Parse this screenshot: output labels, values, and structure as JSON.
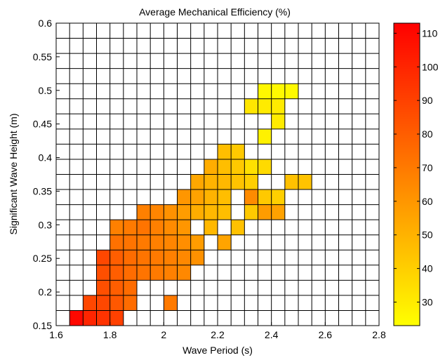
{
  "chart_data": {
    "type": "heatmap",
    "title": "Average Mechanical Efficiency (%)",
    "xlabel": "Wave Period (s)",
    "ylabel": "Significant Wave Height (m)",
    "xlim": [
      1.6,
      2.8
    ],
    "ylim": [
      0.15,
      0.6
    ],
    "x_ticks": [
      1.6,
      1.8,
      2.0,
      2.2,
      2.4,
      2.6,
      2.8
    ],
    "x_tick_labels": [
      "1.6",
      "1.8",
      "2",
      "2.2",
      "2.4",
      "2.6",
      "2.8"
    ],
    "y_ticks": [
      0.15,
      0.2,
      0.25,
      0.3,
      0.35,
      0.4,
      0.45,
      0.5,
      0.55,
      0.6
    ],
    "y_tick_labels": [
      "0.15",
      "0.2",
      "0.25",
      "0.3",
      "0.35",
      "0.4",
      "0.45",
      "0.5",
      "0.55",
      "0.6"
    ],
    "x_bin_width": 0.05,
    "y_bin_height": 0.0225,
    "colormap": "autumn (red to yellow)",
    "color_min": 23,
    "color_max": 113,
    "color_low_hex": "#ffff00",
    "color_high_hex": "#ff0000",
    "colorbar_ticks": [
      30,
      40,
      50,
      60,
      70,
      80,
      90,
      100,
      110
    ],
    "colorbar_tick_labels": [
      "30",
      "40",
      "50",
      "60",
      "70",
      "80",
      "90",
      "100",
      "110"
    ],
    "grid": true,
    "cells": [
      {
        "x": 1.65,
        "y": 0.15,
        "value": 110
      },
      {
        "x": 1.7,
        "y": 0.15,
        "value": 100
      },
      {
        "x": 1.75,
        "y": 0.15,
        "value": 95
      },
      {
        "x": 1.8,
        "y": 0.15,
        "value": 90
      },
      {
        "x": 1.7,
        "y": 0.1725,
        "value": 88
      },
      {
        "x": 1.75,
        "y": 0.1725,
        "value": 88
      },
      {
        "x": 1.8,
        "y": 0.1725,
        "value": 82
      },
      {
        "x": 1.85,
        "y": 0.1725,
        "value": 75
      },
      {
        "x": 2.0,
        "y": 0.1725,
        "value": 70
      },
      {
        "x": 1.75,
        "y": 0.195,
        "value": 85
      },
      {
        "x": 1.8,
        "y": 0.195,
        "value": 80
      },
      {
        "x": 1.85,
        "y": 0.195,
        "value": 75
      },
      {
        "x": 1.75,
        "y": 0.2175,
        "value": 85
      },
      {
        "x": 1.8,
        "y": 0.2175,
        "value": 80
      },
      {
        "x": 1.85,
        "y": 0.2175,
        "value": 75
      },
      {
        "x": 1.9,
        "y": 0.2175,
        "value": 72
      },
      {
        "x": 1.95,
        "y": 0.2175,
        "value": 70
      },
      {
        "x": 2.0,
        "y": 0.2175,
        "value": 68
      },
      {
        "x": 2.05,
        "y": 0.2175,
        "value": 65
      },
      {
        "x": 1.75,
        "y": 0.24,
        "value": 88
      },
      {
        "x": 1.8,
        "y": 0.24,
        "value": 80
      },
      {
        "x": 1.85,
        "y": 0.24,
        "value": 75
      },
      {
        "x": 1.9,
        "y": 0.24,
        "value": 72
      },
      {
        "x": 1.95,
        "y": 0.24,
        "value": 70
      },
      {
        "x": 2.0,
        "y": 0.24,
        "value": 68
      },
      {
        "x": 2.05,
        "y": 0.24,
        "value": 65
      },
      {
        "x": 2.1,
        "y": 0.24,
        "value": 62
      },
      {
        "x": 1.8,
        "y": 0.2625,
        "value": 73
      },
      {
        "x": 1.85,
        "y": 0.2625,
        "value": 72
      },
      {
        "x": 1.9,
        "y": 0.2625,
        "value": 70
      },
      {
        "x": 1.95,
        "y": 0.2625,
        "value": 68
      },
      {
        "x": 2.0,
        "y": 0.2625,
        "value": 66
      },
      {
        "x": 2.05,
        "y": 0.2625,
        "value": 63
      },
      {
        "x": 2.1,
        "y": 0.2625,
        "value": 58
      },
      {
        "x": 2.2,
        "y": 0.2625,
        "value": 55
      },
      {
        "x": 1.8,
        "y": 0.285,
        "value": 68
      },
      {
        "x": 1.85,
        "y": 0.285,
        "value": 70
      },
      {
        "x": 1.9,
        "y": 0.285,
        "value": 72
      },
      {
        "x": 1.95,
        "y": 0.285,
        "value": 68
      },
      {
        "x": 2.0,
        "y": 0.285,
        "value": 64
      },
      {
        "x": 2.05,
        "y": 0.285,
        "value": 60
      },
      {
        "x": 2.15,
        "y": 0.285,
        "value": 48
      },
      {
        "x": 2.25,
        "y": 0.285,
        "value": 45
      },
      {
        "x": 1.9,
        "y": 0.3075,
        "value": 68
      },
      {
        "x": 1.95,
        "y": 0.3075,
        "value": 66
      },
      {
        "x": 2.0,
        "y": 0.3075,
        "value": 62
      },
      {
        "x": 2.05,
        "y": 0.3075,
        "value": 58
      },
      {
        "x": 2.1,
        "y": 0.3075,
        "value": 52
      },
      {
        "x": 2.15,
        "y": 0.3075,
        "value": 48
      },
      {
        "x": 2.2,
        "y": 0.3075,
        "value": 46
      },
      {
        "x": 2.3,
        "y": 0.3075,
        "value": 42
      },
      {
        "x": 2.35,
        "y": 0.3075,
        "value": 58
      },
      {
        "x": 2.4,
        "y": 0.3075,
        "value": 56
      },
      {
        "x": 2.05,
        "y": 0.33,
        "value": 60
      },
      {
        "x": 2.1,
        "y": 0.33,
        "value": 56
      },
      {
        "x": 2.15,
        "y": 0.33,
        "value": 50
      },
      {
        "x": 2.2,
        "y": 0.33,
        "value": 46
      },
      {
        "x": 2.3,
        "y": 0.33,
        "value": 64
      },
      {
        "x": 2.35,
        "y": 0.33,
        "value": 42
      },
      {
        "x": 2.4,
        "y": 0.33,
        "value": 40
      },
      {
        "x": 2.1,
        "y": 0.3525,
        "value": 54
      },
      {
        "x": 2.15,
        "y": 0.3525,
        "value": 50
      },
      {
        "x": 2.2,
        "y": 0.3525,
        "value": 48
      },
      {
        "x": 2.25,
        "y": 0.3525,
        "value": 44
      },
      {
        "x": 2.3,
        "y": 0.3525,
        "value": 40
      },
      {
        "x": 2.45,
        "y": 0.3525,
        "value": 45
      },
      {
        "x": 2.5,
        "y": 0.3525,
        "value": 44
      },
      {
        "x": 2.15,
        "y": 0.375,
        "value": 52
      },
      {
        "x": 2.2,
        "y": 0.375,
        "value": 46
      },
      {
        "x": 2.25,
        "y": 0.375,
        "value": 42
      },
      {
        "x": 2.3,
        "y": 0.375,
        "value": 34
      },
      {
        "x": 2.35,
        "y": 0.375,
        "value": 36
      },
      {
        "x": 2.2,
        "y": 0.3975,
        "value": 46
      },
      {
        "x": 2.25,
        "y": 0.3975,
        "value": 42
      },
      {
        "x": 2.35,
        "y": 0.42,
        "value": 28
      },
      {
        "x": 2.4,
        "y": 0.4425,
        "value": 30
      },
      {
        "x": 2.3,
        "y": 0.465,
        "value": 32
      },
      {
        "x": 2.35,
        "y": 0.465,
        "value": 30
      },
      {
        "x": 2.4,
        "y": 0.465,
        "value": 30
      },
      {
        "x": 2.35,
        "y": 0.4875,
        "value": 26
      },
      {
        "x": 2.4,
        "y": 0.4875,
        "value": 25
      },
      {
        "x": 2.45,
        "y": 0.4875,
        "value": 25
      }
    ]
  }
}
